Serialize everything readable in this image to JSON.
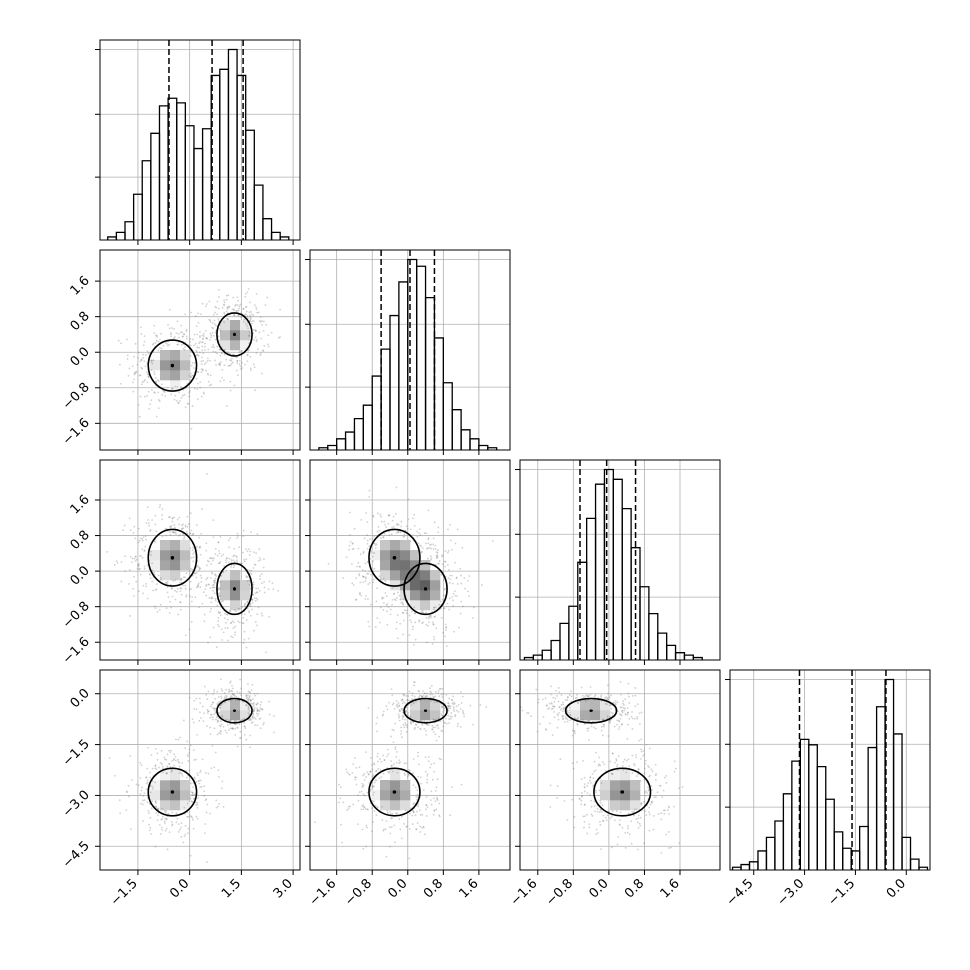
{
  "chart_data": {
    "type": "corner",
    "grid": true,
    "params": [
      {
        "index": 0,
        "range": [
          -2.6,
          3.2
        ],
        "ticks": [
          -1.5,
          0.0,
          1.5,
          3.0
        ],
        "tick_labels": [
          "−1.5",
          "0.0",
          "1.5",
          "3.0"
        ],
        "hist": {
          "x": [
            -2.25,
            -2.0,
            -1.75,
            -1.5,
            -1.25,
            -1.0,
            -0.75,
            -0.5,
            -0.25,
            0.0,
            0.25,
            0.5,
            0.75,
            1.0,
            1.25,
            1.5,
            1.75,
            2.0,
            2.25,
            2.5,
            2.75
          ],
          "values": [
            0.02,
            0.05,
            0.12,
            0.3,
            0.52,
            0.7,
            0.88,
            0.93,
            0.9,
            0.75,
            0.6,
            0.73,
            1.08,
            1.12,
            1.25,
            1.08,
            0.72,
            0.36,
            0.14,
            0.05,
            0.02
          ]
        },
        "quantiles": [
          -0.6,
          0.65,
          1.55
        ]
      },
      {
        "index": 1,
        "range": [
          -2.2,
          2.3
        ],
        "ticks": [
          -1.6,
          -0.8,
          0.0,
          0.8,
          1.6
        ],
        "tick_labels": [
          "−1.6",
          "−0.8",
          "0.0",
          "0.8",
          "1.6"
        ],
        "hist": {
          "x": [
            -1.9,
            -1.7,
            -1.5,
            -1.3,
            -1.1,
            -0.9,
            -0.7,
            -0.5,
            -0.3,
            -0.1,
            0.1,
            0.3,
            0.5,
            0.7,
            0.9,
            1.1,
            1.3,
            1.5,
            1.7,
            1.9
          ],
          "values": [
            0.01,
            0.02,
            0.05,
            0.08,
            0.14,
            0.2,
            0.33,
            0.45,
            0.6,
            0.75,
            0.85,
            0.82,
            0.68,
            0.5,
            0.3,
            0.18,
            0.09,
            0.05,
            0.02,
            0.01
          ]
        },
        "quantiles": [
          -0.6,
          0.05,
          0.6
        ]
      },
      {
        "index": 2,
        "range": [
          -2.0,
          2.5
        ],
        "ticks": [
          -1.6,
          -0.8,
          0.0,
          0.8,
          1.6
        ],
        "tick_labels": [
          "−1.6",
          "−0.8",
          "0.0",
          "0.8",
          "1.6"
        ],
        "hist": {
          "x": [
            -1.8,
            -1.6,
            -1.4,
            -1.2,
            -1.0,
            -0.8,
            -0.6,
            -0.4,
            -0.2,
            0.0,
            0.2,
            0.4,
            0.6,
            0.8,
            1.0,
            1.2,
            1.4,
            1.6,
            1.8,
            2.0
          ],
          "values": [
            0.01,
            0.02,
            0.04,
            0.08,
            0.15,
            0.22,
            0.4,
            0.58,
            0.72,
            0.78,
            0.74,
            0.62,
            0.46,
            0.3,
            0.19,
            0.11,
            0.06,
            0.03,
            0.02,
            0.01
          ]
        },
        "quantiles": [
          -0.65,
          -0.05,
          0.6
        ]
      },
      {
        "index": 3,
        "range": [
          -5.2,
          0.7
        ],
        "ticks": [
          -4.5,
          -3.0,
          -1.5,
          0.0
        ],
        "tick_labels": [
          "−4.5",
          "−3.0",
          "−1.5",
          "0.0"
        ],
        "hist": {
          "x": [
            -5.0,
            -4.75,
            -4.5,
            -4.25,
            -4.0,
            -3.75,
            -3.5,
            -3.25,
            -3.0,
            -2.75,
            -2.5,
            -2.25,
            -2.0,
            -1.75,
            -1.5,
            -1.25,
            -1.0,
            -0.75,
            -0.5,
            -0.25,
            0.0,
            0.25,
            0.5
          ],
          "values": [
            0.01,
            0.02,
            0.03,
            0.07,
            0.12,
            0.18,
            0.28,
            0.4,
            0.48,
            0.46,
            0.38,
            0.26,
            0.14,
            0.08,
            0.07,
            0.16,
            0.45,
            0.6,
            0.7,
            0.5,
            0.12,
            0.04,
            0.01
          ]
        },
        "quantiles": [
          -3.15,
          -1.6,
          -0.6
        ]
      }
    ],
    "components": [
      {
        "weight": 0.5,
        "mean": [
          -0.5,
          -0.3,
          0.3,
          -2.9
        ],
        "sd": [
          0.55,
          0.45,
          0.5,
          0.55
        ]
      },
      {
        "weight": 0.5,
        "mean": [
          1.3,
          0.4,
          -0.4,
          -0.5
        ],
        "sd": [
          0.4,
          0.38,
          0.45,
          0.28
        ]
      }
    ],
    "contour_levels": [
      0.3,
      0.6,
      0.85
    ]
  }
}
